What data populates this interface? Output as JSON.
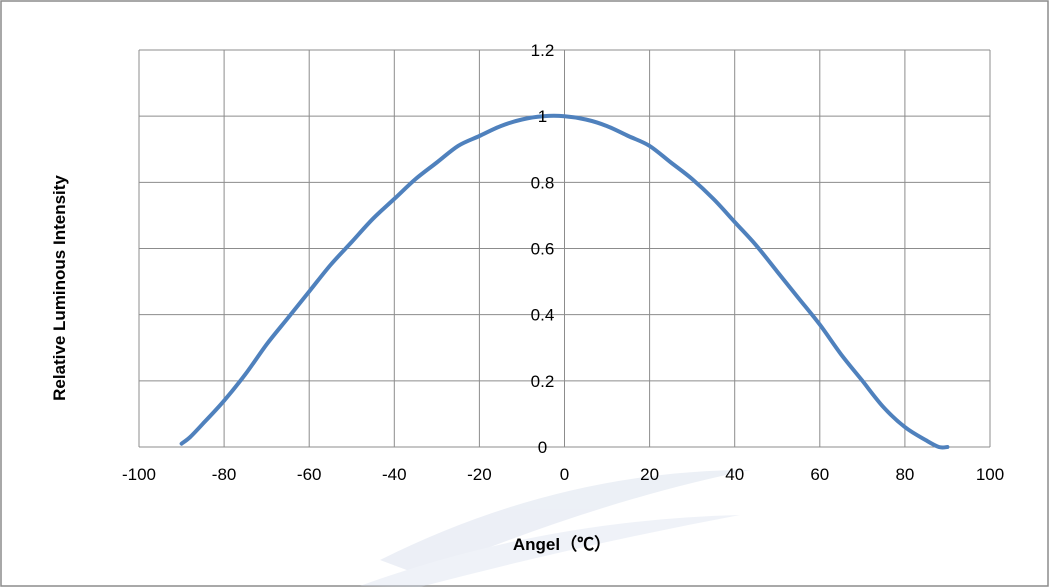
{
  "chart_data": {
    "type": "line",
    "title": "",
    "xlabel": "Angel（℃）",
    "ylabel": "Relative Luminous Intensity",
    "xlim": [
      -100,
      100
    ],
    "ylim": [
      0,
      1.2
    ],
    "x_ticks": [
      "-100",
      "-80",
      "-60",
      "-40",
      "-20",
      "0",
      "20",
      "40",
      "60",
      "80",
      "100"
    ],
    "y_ticks": [
      "0",
      "0.2",
      "0.4",
      "0.6",
      "0.8",
      "1",
      "1.2"
    ],
    "grid": true,
    "legend": "none",
    "series": [
      {
        "color": "#4f81bd",
        "x": [
          -90,
          -88,
          -85,
          -80,
          -75,
          -70,
          -65,
          -60,
          -55,
          -50,
          -45,
          -40,
          -35,
          -30,
          -25,
          -20,
          -15,
          -10,
          -5,
          0,
          5,
          10,
          15,
          20,
          25,
          30,
          35,
          40,
          45,
          50,
          55,
          60,
          65,
          70,
          75,
          80,
          85,
          88,
          90
        ],
        "y": [
          0.01,
          0.03,
          0.07,
          0.14,
          0.22,
          0.31,
          0.39,
          0.47,
          0.55,
          0.62,
          0.69,
          0.75,
          0.81,
          0.86,
          0.91,
          0.94,
          0.97,
          0.99,
          1.0,
          1.0,
          0.99,
          0.97,
          0.94,
          0.91,
          0.86,
          0.81,
          0.75,
          0.68,
          0.61,
          0.53,
          0.45,
          0.37,
          0.28,
          0.2,
          0.12,
          0.06,
          0.02,
          0.0,
          0.0
        ]
      }
    ]
  }
}
